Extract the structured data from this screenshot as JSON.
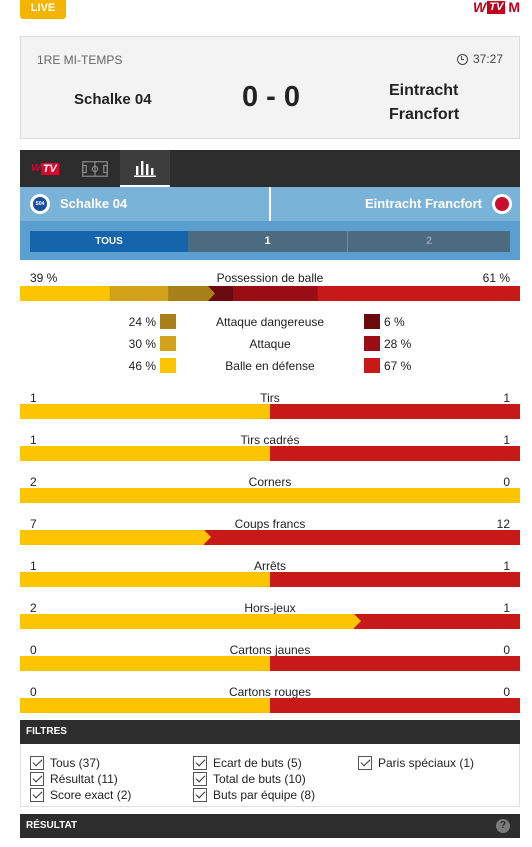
{
  "live_badge": "LIVE",
  "brand": {
    "w": "W",
    "tv": "TV",
    "m": "M"
  },
  "match": {
    "period": "1RE MI-TEMPS",
    "time": "37:27",
    "home": "Schalke 04",
    "away_line1": "Eintracht",
    "away_line2": "Francfort",
    "score": "0 - 0"
  },
  "tabs": {
    "tv_w": "W",
    "tv": "TV"
  },
  "team_band": {
    "home": "Schalke 04",
    "away": "Eintracht Francfort",
    "home_crest": "S04"
  },
  "period_filter": {
    "all": "TOUS",
    "first": "1",
    "second": "2"
  },
  "colors": {
    "home": "#fdc500",
    "away": "#c81919",
    "home_shades": [
      "#fdc500",
      "#d2a21a",
      "#a8801a"
    ],
    "away_shades": [
      "#c81919",
      "#9a0d12",
      "#6b0a0e"
    ]
  },
  "possession": {
    "label": "Possession de balle",
    "home_pct": 39,
    "away_pct": 61,
    "home_label": "39 %",
    "away_label": "61 %",
    "breakdown": [
      {
        "label": "Attaque dangereuse",
        "home": 24,
        "away": 6,
        "home_label": "24 %",
        "away_label": "6 %"
      },
      {
        "label": "Attaque",
        "home": 30,
        "away": 28,
        "home_label": "30 %",
        "away_label": "28 %"
      },
      {
        "label": "Balle en défense",
        "home": 46,
        "away": 67,
        "home_label": "46 %",
        "away_label": "67 %"
      }
    ]
  },
  "stats": [
    {
      "label": "Tirs",
      "home": "1",
      "away": "1",
      "home_share": 0.5
    },
    {
      "label": "Tirs cadrés",
      "home": "1",
      "away": "1",
      "home_share": 0.5
    },
    {
      "label": "Corners",
      "home": "2",
      "away": "0",
      "home_share": 1.0
    },
    {
      "label": "Coups francs",
      "home": "7",
      "away": "12",
      "home_share": 0.368
    },
    {
      "label": "Arrêts",
      "home": "1",
      "away": "1",
      "home_share": 0.5
    },
    {
      "label": "Hors-jeux",
      "home": "2",
      "away": "1",
      "home_share": 0.667
    },
    {
      "label": "Cartons jaunes",
      "home": "0",
      "away": "0",
      "home_share": 0.5
    },
    {
      "label": "Cartons rouges",
      "home": "0",
      "away": "0",
      "home_share": 0.5
    }
  ],
  "filters": {
    "title": "FILTRES",
    "items": [
      {
        "label": "Tous (37)"
      },
      {
        "label": "Résultat (11)"
      },
      {
        "label": "Score exact (2)"
      },
      {
        "label": "Ecart de buts (5)"
      },
      {
        "label": "Total de buts (10)"
      },
      {
        "label": "Buts par équipe (8)"
      },
      {
        "label": "Paris spéciaux (1)"
      }
    ]
  },
  "result_section": {
    "title": "RÉSULTAT",
    "help": "?"
  }
}
